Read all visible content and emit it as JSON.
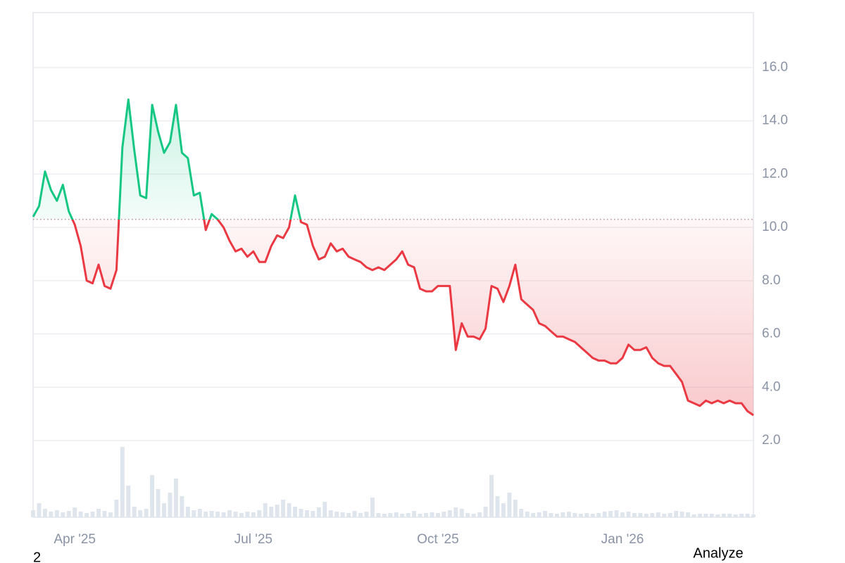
{
  "chart_data": {
    "type": "baseline",
    "categories": [
      null,
      null,
      null,
      null,
      null,
      null,
      null,
      "Apr '25",
      null,
      null,
      null,
      null,
      null,
      null,
      null,
      null,
      null,
      null,
      null,
      null,
      null,
      null,
      null,
      null,
      null,
      null,
      null,
      null,
      null,
      null,
      null,
      null,
      null,
      null,
      null,
      null,
      null,
      "Jul '25",
      null,
      null,
      null,
      null,
      null,
      null,
      null,
      null,
      null,
      null,
      null,
      null,
      null,
      null,
      null,
      null,
      null,
      null,
      null,
      null,
      null,
      null,
      null,
      null,
      null,
      null,
      null,
      null,
      null,
      null,
      "Oct '25",
      null,
      null,
      null,
      null,
      null,
      null,
      null,
      null,
      null,
      null,
      null,
      null,
      null,
      null,
      null,
      null,
      null,
      null,
      null,
      null,
      null,
      null,
      null,
      null,
      null,
      null,
      null,
      null,
      null,
      null,
      "Jan '26",
      null,
      null,
      null,
      null,
      null,
      null,
      null,
      null,
      null,
      null,
      null,
      null,
      null,
      null,
      null,
      null,
      null,
      null,
      null,
      null,
      null,
      null
    ],
    "values": [
      10.4,
      10.8,
      12.1,
      11.4,
      11.0,
      11.6,
      10.6,
      10.1,
      9.3,
      8.0,
      7.9,
      8.6,
      7.8,
      7.7,
      8.4,
      13.0,
      14.8,
      12.9,
      11.2,
      11.1,
      14.6,
      13.6,
      12.8,
      13.2,
      14.6,
      12.8,
      12.6,
      11.2,
      11.3,
      9.9,
      10.5,
      10.3,
      10.0,
      9.5,
      9.1,
      9.2,
      8.9,
      9.1,
      8.7,
      8.7,
      9.3,
      9.7,
      9.6,
      10.0,
      11.2,
      10.2,
      10.1,
      9.3,
      8.8,
      8.9,
      9.4,
      9.1,
      9.2,
      8.9,
      8.8,
      8.7,
      8.5,
      8.4,
      8.5,
      8.4,
      8.6,
      8.8,
      9.1,
      8.6,
      8.5,
      7.7,
      7.6,
      7.6,
      7.8,
      7.8,
      7.8,
      5.4,
      6.4,
      5.9,
      5.9,
      5.8,
      6.2,
      7.8,
      7.7,
      7.2,
      7.8,
      8.6,
      7.3,
      7.1,
      6.9,
      6.4,
      6.3,
      6.1,
      5.9,
      5.9,
      5.8,
      5.7,
      5.5,
      5.3,
      5.1,
      5.0,
      5.0,
      4.9,
      4.9,
      5.1,
      5.6,
      5.4,
      5.4,
      5.5,
      5.1,
      4.9,
      4.8,
      4.8,
      4.5,
      4.2,
      3.5,
      3.4,
      3.3,
      3.5,
      3.4,
      3.5,
      3.4,
      3.5,
      3.4,
      3.4,
      3.1,
      2.95
    ],
    "volume": [
      10,
      20,
      12,
      8,
      10,
      7,
      9,
      14,
      8,
      6,
      8,
      12,
      9,
      7,
      25,
      100,
      45,
      15,
      10,
      12,
      60,
      40,
      20,
      35,
      55,
      30,
      15,
      10,
      12,
      8,
      9,
      8,
      7,
      10,
      8,
      6,
      8,
      7,
      10,
      20,
      15,
      18,
      25,
      20,
      15,
      12,
      10,
      9,
      14,
      22,
      10,
      8,
      7,
      6,
      9,
      6,
      8,
      28,
      6,
      5,
      6,
      7,
      5,
      6,
      9,
      5,
      6,
      7,
      6,
      8,
      10,
      14,
      12,
      6,
      5,
      7,
      15,
      60,
      30,
      20,
      35,
      25,
      12,
      8,
      6,
      7,
      9,
      6,
      5,
      7,
      8,
      6,
      5,
      6,
      5,
      6,
      8,
      9,
      10,
      7,
      8,
      6,
      6,
      5,
      6,
      7,
      5,
      6,
      9,
      8,
      7,
      4,
      5,
      5,
      5,
      4,
      5,
      5,
      4,
      5,
      5,
      4
    ],
    "baseline": 10.3,
    "up_color": "#16c784",
    "down_color": "#ea3943",
    "volume_color": "#dfe5ec",
    "ylim": [
      -0.88,
      18.06
    ],
    "yticks": [
      {
        "value": 2,
        "label": "2.0"
      },
      {
        "value": 4,
        "label": "4.0"
      },
      {
        "value": 6,
        "label": "6.0"
      },
      {
        "value": 8,
        "label": "8.0"
      },
      {
        "value": 10,
        "label": "10.0"
      },
      {
        "value": 12,
        "label": "12.0"
      },
      {
        "value": 14,
        "label": "14.0"
      },
      {
        "value": 16,
        "label": "16.0"
      }
    ],
    "grid": true
  },
  "footer": {
    "page_number": "2",
    "button": "Analyze"
  }
}
